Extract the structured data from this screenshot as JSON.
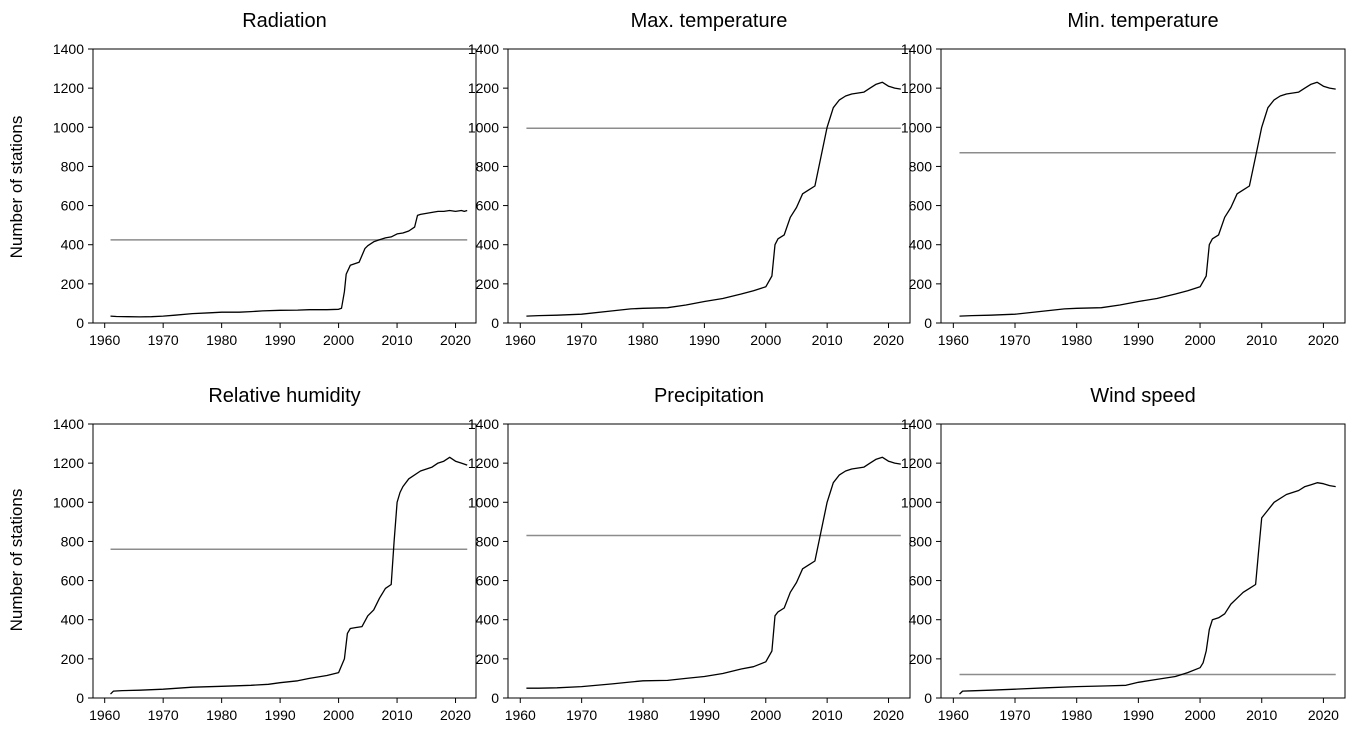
{
  "y_axis_label": "Number of stations",
  "chart_data": [
    {
      "type": "line",
      "title": "Radiation",
      "xlabel": "",
      "ylabel": "Number of stations",
      "xlim": [
        1958,
        2023.5
      ],
      "ylim": [
        0,
        1400
      ],
      "xticks": [
        1960,
        1970,
        1980,
        1990,
        2000,
        2010,
        2020
      ],
      "yticks": [
        0,
        200,
        400,
        600,
        800,
        1000,
        1200,
        1400
      ],
      "grid": false,
      "reference_line": 425,
      "x": [
        1961,
        1962,
        1964,
        1966,
        1968,
        1970,
        1972,
        1975,
        1978,
        1980,
        1983,
        1985,
        1987,
        1990,
        1993,
        1995,
        1998,
        2000,
        2000.5,
        2001,
        2001.3,
        2002,
        2003,
        2003.5,
        2004.5,
        2005,
        2006,
        2007,
        2008,
        2009,
        2010,
        2011,
        2012,
        2013,
        2013.5,
        2014,
        2015,
        2016,
        2017,
        2018,
        2019,
        2020,
        2021,
        2021.5,
        2022
      ],
      "y": [
        35,
        33,
        32,
        31,
        32,
        35,
        40,
        48,
        52,
        55,
        55,
        58,
        62,
        65,
        66,
        68,
        68,
        70,
        75,
        160,
        250,
        295,
        305,
        310,
        380,
        395,
        415,
        425,
        435,
        440,
        455,
        460,
        470,
        490,
        550,
        555,
        560,
        565,
        570,
        570,
        575,
        570,
        575,
        570,
        575
      ]
    },
    {
      "type": "line",
      "title": "Max. temperature",
      "xlabel": "",
      "ylabel": "",
      "xlim": [
        1958,
        2023.5
      ],
      "ylim": [
        0,
        1400
      ],
      "xticks": [
        1960,
        1970,
        1980,
        1990,
        2000,
        2010,
        2020
      ],
      "yticks": [
        0,
        200,
        400,
        600,
        800,
        1000,
        1200,
        1400
      ],
      "grid": false,
      "reference_line": 995,
      "x": [
        1961,
        1963,
        1966,
        1970,
        1975,
        1978,
        1980,
        1984,
        1987,
        1990,
        1993,
        1996,
        1998,
        2000,
        2001,
        2001.5,
        2002,
        2003,
        2004,
        2005,
        2006,
        2007,
        2008,
        2009,
        2010,
        2010.5,
        2011,
        2012,
        2013,
        2014,
        2016,
        2017,
        2018,
        2019,
        2020,
        2021,
        2022
      ],
      "y": [
        35,
        38,
        40,
        45,
        62,
        72,
        75,
        78,
        92,
        110,
        125,
        148,
        165,
        185,
        240,
        400,
        430,
        450,
        540,
        590,
        660,
        680,
        700,
        850,
        1000,
        1050,
        1100,
        1140,
        1160,
        1170,
        1180,
        1200,
        1220,
        1230,
        1210,
        1200,
        1195
      ]
    },
    {
      "type": "line",
      "title": "Min. temperature",
      "xlabel": "",
      "ylabel": "",
      "xlim": [
        1958,
        2023.5
      ],
      "ylim": [
        0,
        1400
      ],
      "xticks": [
        1960,
        1970,
        1980,
        1990,
        2000,
        2010,
        2020
      ],
      "yticks": [
        0,
        200,
        400,
        600,
        800,
        1000,
        1200,
        1400
      ],
      "grid": false,
      "reference_line": 870,
      "x": [
        1961,
        1963,
        1966,
        1970,
        1975,
        1978,
        1980,
        1984,
        1987,
        1990,
        1993,
        1996,
        1998,
        2000,
        2001,
        2001.5,
        2002,
        2003,
        2004,
        2005,
        2006,
        2007,
        2008,
        2009,
        2010,
        2010.5,
        2011,
        2012,
        2013,
        2014,
        2016,
        2017,
        2018,
        2019,
        2020,
        2021,
        2022
      ],
      "y": [
        35,
        38,
        40,
        45,
        62,
        72,
        75,
        78,
        92,
        110,
        125,
        148,
        165,
        185,
        240,
        400,
        430,
        450,
        540,
        590,
        660,
        680,
        700,
        850,
        1000,
        1050,
        1100,
        1140,
        1160,
        1170,
        1180,
        1200,
        1220,
        1230,
        1210,
        1200,
        1195
      ]
    },
    {
      "type": "line",
      "title": "Relative humidity",
      "xlabel": "",
      "ylabel": "Number of stations",
      "xlim": [
        1958,
        2023.5
      ],
      "ylim": [
        0,
        1400
      ],
      "xticks": [
        1960,
        1970,
        1980,
        1990,
        2000,
        2010,
        2020
      ],
      "yticks": [
        0,
        200,
        400,
        600,
        800,
        1000,
        1200,
        1400
      ],
      "grid": false,
      "reference_line": 760,
      "x": [
        1961,
        1961.5,
        1963,
        1966,
        1970,
        1975,
        1980,
        1985,
        1988,
        1990,
        1993,
        1995,
        1998,
        2000,
        2001,
        2001.5,
        2002,
        2003,
        2004,
        2005,
        2006,
        2007,
        2008,
        2009,
        2009.5,
        2010,
        2010.5,
        2011,
        2012,
        2014,
        2016,
        2017,
        2018,
        2019,
        2020,
        2021,
        2022
      ],
      "y": [
        20,
        35,
        38,
        40,
        45,
        55,
        60,
        65,
        70,
        78,
        88,
        100,
        115,
        130,
        200,
        330,
        355,
        360,
        365,
        420,
        450,
        510,
        560,
        580,
        800,
        1000,
        1050,
        1080,
        1120,
        1160,
        1180,
        1200,
        1210,
        1230,
        1210,
        1200,
        1190
      ]
    },
    {
      "type": "line",
      "title": "Precipitation",
      "xlabel": "",
      "ylabel": "",
      "xlim": [
        1958,
        2023.5
      ],
      "ylim": [
        0,
        1400
      ],
      "xticks": [
        1960,
        1970,
        1980,
        1990,
        2000,
        2010,
        2020
      ],
      "yticks": [
        0,
        200,
        400,
        600,
        800,
        1000,
        1200,
        1400
      ],
      "grid": false,
      "reference_line": 830,
      "x": [
        1961,
        1963,
        1966,
        1970,
        1975,
        1978,
        1980,
        1984,
        1987,
        1990,
        1993,
        1996,
        1998,
        2000,
        2001,
        2001.5,
        2002,
        2003,
        2004,
        2005,
        2006,
        2007,
        2008,
        2009,
        2010,
        2010.5,
        2011,
        2012,
        2013,
        2014,
        2016,
        2017,
        2018,
        2019,
        2020,
        2021,
        2022
      ],
      "y": [
        50,
        50,
        52,
        58,
        72,
        82,
        88,
        90,
        100,
        110,
        125,
        148,
        160,
        185,
        240,
        420,
        440,
        460,
        540,
        590,
        660,
        680,
        700,
        850,
        1000,
        1050,
        1100,
        1140,
        1160,
        1170,
        1180,
        1200,
        1220,
        1230,
        1210,
        1200,
        1195
      ]
    },
    {
      "type": "line",
      "title": "Wind speed",
      "xlabel": "",
      "ylabel": "",
      "xlim": [
        1958,
        2023.5
      ],
      "ylim": [
        0,
        1400
      ],
      "xticks": [
        1960,
        1970,
        1980,
        1990,
        2000,
        2010,
        2020
      ],
      "yticks": [
        0,
        200,
        400,
        600,
        800,
        1000,
        1200,
        1400
      ],
      "grid": false,
      "reference_line": 120,
      "x": [
        1961,
        1961.5,
        1963,
        1966,
        1970,
        1975,
        1980,
        1985,
        1988,
        1990,
        1993,
        1996,
        1998,
        2000,
        2000.5,
        2001,
        2001.5,
        2002,
        2003,
        2004,
        2005,
        2006,
        2007,
        2008,
        2009,
        2009.5,
        2010,
        2011,
        2012,
        2014,
        2016,
        2017,
        2018,
        2019,
        2020,
        2021,
        2022
      ],
      "y": [
        20,
        35,
        37,
        40,
        45,
        52,
        58,
        62,
        65,
        80,
        95,
        110,
        130,
        155,
        180,
        240,
        350,
        400,
        410,
        430,
        480,
        510,
        540,
        560,
        580,
        750,
        920,
        960,
        1000,
        1040,
        1060,
        1080,
        1090,
        1100,
        1095,
        1085,
        1080
      ]
    }
  ]
}
